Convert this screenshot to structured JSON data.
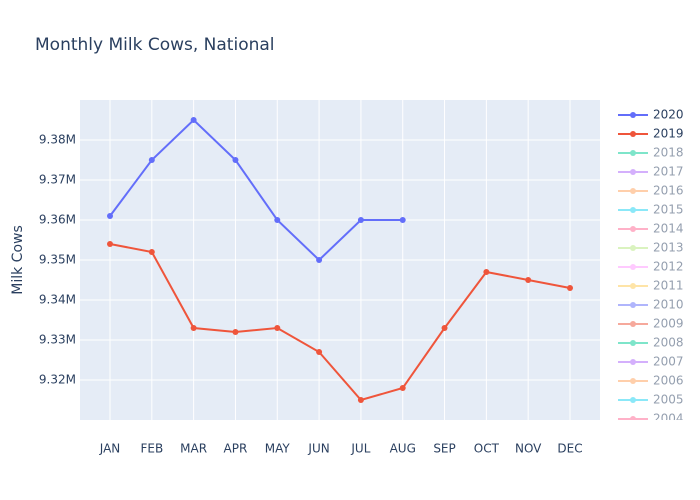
{
  "chart_data": {
    "type": "line",
    "title": "Monthly Milk Cows, National",
    "y_label": "Milk Cows",
    "categories": [
      "JAN",
      "FEB",
      "MAR",
      "APR",
      "MAY",
      "JUN",
      "JUL",
      "AUG",
      "SEP",
      "OCT",
      "NOV",
      "DEC"
    ],
    "series": [
      {
        "name": "2020",
        "color": "#636efa",
        "values": [
          9361000,
          9375000,
          9385000,
          9375000,
          9360000,
          9350000,
          9360000,
          9360000,
          null,
          null,
          null,
          null
        ]
      },
      {
        "name": "2019",
        "color": "#EF553B",
        "values": [
          9354000,
          9352000,
          9333000,
          9332000,
          9333000,
          9327000,
          9315000,
          9318000,
          9333000,
          9347000,
          9345000,
          9343000
        ]
      }
    ],
    "legend_only": [
      {
        "name": "2018",
        "color": "#00cc96"
      },
      {
        "name": "2017",
        "color": "#ab63fa"
      },
      {
        "name": "2016",
        "color": "#FFA15A"
      },
      {
        "name": "2015",
        "color": "#19d3f3"
      },
      {
        "name": "2014",
        "color": "#FF6692"
      },
      {
        "name": "2013",
        "color": "#B6E880"
      },
      {
        "name": "2012",
        "color": "#FF97FF"
      },
      {
        "name": "2011",
        "color": "#FECB52"
      },
      {
        "name": "2010",
        "color": "#636efa"
      },
      {
        "name": "2009",
        "color": "#EF553B"
      },
      {
        "name": "2008",
        "color": "#00cc96"
      },
      {
        "name": "2007",
        "color": "#ab63fa"
      },
      {
        "name": "2006",
        "color": "#FFA15A"
      },
      {
        "name": "2005",
        "color": "#19d3f3"
      },
      {
        "name": "2004",
        "color": "#FF6692"
      }
    ],
    "ylim": [
      9310000,
      9390000
    ],
    "yticks": [
      {
        "value": 9320000,
        "label": "9.32M"
      },
      {
        "value": 9330000,
        "label": "9.33M"
      },
      {
        "value": 9340000,
        "label": "9.34M"
      },
      {
        "value": 9350000,
        "label": "9.35M"
      },
      {
        "value": 9360000,
        "label": "9.36M"
      },
      {
        "value": 9370000,
        "label": "9.37M"
      },
      {
        "value": 9380000,
        "label": "9.38M"
      }
    ],
    "grid": true,
    "legend": "right"
  }
}
